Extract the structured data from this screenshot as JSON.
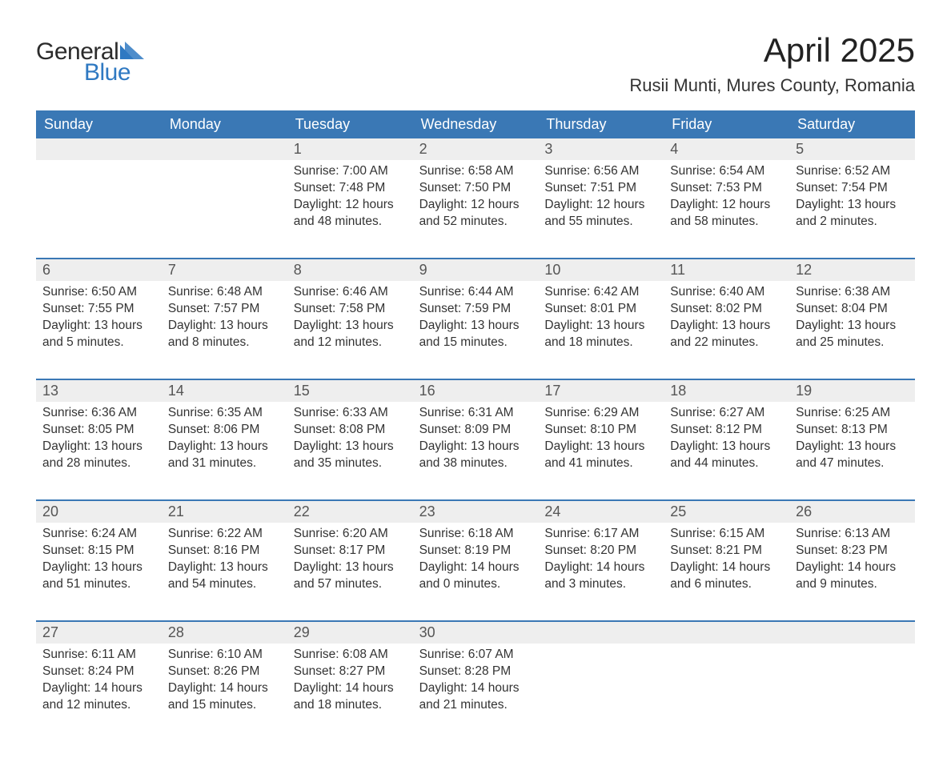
{
  "brand": {
    "general": "General",
    "blue": "Blue",
    "tri_color": "#2f79c2"
  },
  "title": "April 2025",
  "location": "Rusii Munti, Mures County, Romania",
  "colors": {
    "header_bg": "#3a78b5",
    "header_fg": "#ffffff",
    "daynum_bg": "#eeeeee",
    "daynum_fg": "#555555",
    "rule": "#3a78b5",
    "text": "#333333",
    "bg": "#ffffff"
  },
  "weekdays": [
    "Sunday",
    "Monday",
    "Tuesday",
    "Wednesday",
    "Thursday",
    "Friday",
    "Saturday"
  ],
  "weeks": [
    [
      {
        "n": "",
        "lines": [
          "",
          "",
          "",
          ""
        ]
      },
      {
        "n": "",
        "lines": [
          "",
          "",
          "",
          ""
        ]
      },
      {
        "n": "1",
        "lines": [
          "Sunrise: 7:00 AM",
          "Sunset: 7:48 PM",
          "Daylight: 12 hours",
          "and 48 minutes."
        ]
      },
      {
        "n": "2",
        "lines": [
          "Sunrise: 6:58 AM",
          "Sunset: 7:50 PM",
          "Daylight: 12 hours",
          "and 52 minutes."
        ]
      },
      {
        "n": "3",
        "lines": [
          "Sunrise: 6:56 AM",
          "Sunset: 7:51 PM",
          "Daylight: 12 hours",
          "and 55 minutes."
        ]
      },
      {
        "n": "4",
        "lines": [
          "Sunrise: 6:54 AM",
          "Sunset: 7:53 PM",
          "Daylight: 12 hours",
          "and 58 minutes."
        ]
      },
      {
        "n": "5",
        "lines": [
          "Sunrise: 6:52 AM",
          "Sunset: 7:54 PM",
          "Daylight: 13 hours",
          "and 2 minutes."
        ]
      }
    ],
    [
      {
        "n": "6",
        "lines": [
          "Sunrise: 6:50 AM",
          "Sunset: 7:55 PM",
          "Daylight: 13 hours",
          "and 5 minutes."
        ]
      },
      {
        "n": "7",
        "lines": [
          "Sunrise: 6:48 AM",
          "Sunset: 7:57 PM",
          "Daylight: 13 hours",
          "and 8 minutes."
        ]
      },
      {
        "n": "8",
        "lines": [
          "Sunrise: 6:46 AM",
          "Sunset: 7:58 PM",
          "Daylight: 13 hours",
          "and 12 minutes."
        ]
      },
      {
        "n": "9",
        "lines": [
          "Sunrise: 6:44 AM",
          "Sunset: 7:59 PM",
          "Daylight: 13 hours",
          "and 15 minutes."
        ]
      },
      {
        "n": "10",
        "lines": [
          "Sunrise: 6:42 AM",
          "Sunset: 8:01 PM",
          "Daylight: 13 hours",
          "and 18 minutes."
        ]
      },
      {
        "n": "11",
        "lines": [
          "Sunrise: 6:40 AM",
          "Sunset: 8:02 PM",
          "Daylight: 13 hours",
          "and 22 minutes."
        ]
      },
      {
        "n": "12",
        "lines": [
          "Sunrise: 6:38 AM",
          "Sunset: 8:04 PM",
          "Daylight: 13 hours",
          "and 25 minutes."
        ]
      }
    ],
    [
      {
        "n": "13",
        "lines": [
          "Sunrise: 6:36 AM",
          "Sunset: 8:05 PM",
          "Daylight: 13 hours",
          "and 28 minutes."
        ]
      },
      {
        "n": "14",
        "lines": [
          "Sunrise: 6:35 AM",
          "Sunset: 8:06 PM",
          "Daylight: 13 hours",
          "and 31 minutes."
        ]
      },
      {
        "n": "15",
        "lines": [
          "Sunrise: 6:33 AM",
          "Sunset: 8:08 PM",
          "Daylight: 13 hours",
          "and 35 minutes."
        ]
      },
      {
        "n": "16",
        "lines": [
          "Sunrise: 6:31 AM",
          "Sunset: 8:09 PM",
          "Daylight: 13 hours",
          "and 38 minutes."
        ]
      },
      {
        "n": "17",
        "lines": [
          "Sunrise: 6:29 AM",
          "Sunset: 8:10 PM",
          "Daylight: 13 hours",
          "and 41 minutes."
        ]
      },
      {
        "n": "18",
        "lines": [
          "Sunrise: 6:27 AM",
          "Sunset: 8:12 PM",
          "Daylight: 13 hours",
          "and 44 minutes."
        ]
      },
      {
        "n": "19",
        "lines": [
          "Sunrise: 6:25 AM",
          "Sunset: 8:13 PM",
          "Daylight: 13 hours",
          "and 47 minutes."
        ]
      }
    ],
    [
      {
        "n": "20",
        "lines": [
          "Sunrise: 6:24 AM",
          "Sunset: 8:15 PM",
          "Daylight: 13 hours",
          "and 51 minutes."
        ]
      },
      {
        "n": "21",
        "lines": [
          "Sunrise: 6:22 AM",
          "Sunset: 8:16 PM",
          "Daylight: 13 hours",
          "and 54 minutes."
        ]
      },
      {
        "n": "22",
        "lines": [
          "Sunrise: 6:20 AM",
          "Sunset: 8:17 PM",
          "Daylight: 13 hours",
          "and 57 minutes."
        ]
      },
      {
        "n": "23",
        "lines": [
          "Sunrise: 6:18 AM",
          "Sunset: 8:19 PM",
          "Daylight: 14 hours",
          "and 0 minutes."
        ]
      },
      {
        "n": "24",
        "lines": [
          "Sunrise: 6:17 AM",
          "Sunset: 8:20 PM",
          "Daylight: 14 hours",
          "and 3 minutes."
        ]
      },
      {
        "n": "25",
        "lines": [
          "Sunrise: 6:15 AM",
          "Sunset: 8:21 PM",
          "Daylight: 14 hours",
          "and 6 minutes."
        ]
      },
      {
        "n": "26",
        "lines": [
          "Sunrise: 6:13 AM",
          "Sunset: 8:23 PM",
          "Daylight: 14 hours",
          "and 9 minutes."
        ]
      }
    ],
    [
      {
        "n": "27",
        "lines": [
          "Sunrise: 6:11 AM",
          "Sunset: 8:24 PM",
          "Daylight: 14 hours",
          "and 12 minutes."
        ]
      },
      {
        "n": "28",
        "lines": [
          "Sunrise: 6:10 AM",
          "Sunset: 8:26 PM",
          "Daylight: 14 hours",
          "and 15 minutes."
        ]
      },
      {
        "n": "29",
        "lines": [
          "Sunrise: 6:08 AM",
          "Sunset: 8:27 PM",
          "Daylight: 14 hours",
          "and 18 minutes."
        ]
      },
      {
        "n": "30",
        "lines": [
          "Sunrise: 6:07 AM",
          "Sunset: 8:28 PM",
          "Daylight: 14 hours",
          "and 21 minutes."
        ]
      },
      {
        "n": "",
        "lines": [
          "",
          "",
          "",
          ""
        ]
      },
      {
        "n": "",
        "lines": [
          "",
          "",
          "",
          ""
        ]
      },
      {
        "n": "",
        "lines": [
          "",
          "",
          "",
          ""
        ]
      }
    ]
  ]
}
